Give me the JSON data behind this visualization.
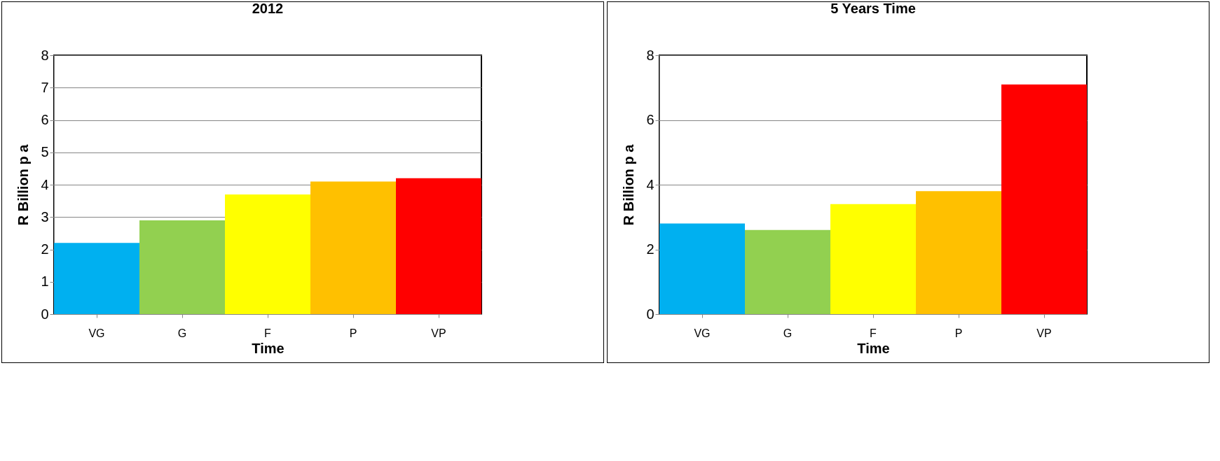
{
  "chart_data": [
    {
      "type": "bar",
      "title": "2012",
      "xlabel": "Time",
      "ylabel": "R Billion p a",
      "categories": [
        "VG",
        "G",
        "F",
        "P",
        "VP"
      ],
      "values": [
        2.2,
        2.9,
        3.7,
        4.1,
        4.2
      ],
      "colors": [
        "#00b0f0",
        "#92d050",
        "#ffff00",
        "#ffc000",
        "#ff0000"
      ],
      "ylim": [
        0,
        8
      ],
      "yticks": [
        0,
        1,
        2,
        3,
        4,
        5,
        6,
        7,
        8
      ],
      "grid": "y"
    },
    {
      "type": "bar",
      "title": "5 Years Time",
      "xlabel": "Time",
      "ylabel": "R Billion p a",
      "categories": [
        "VG",
        "G",
        "F",
        "P",
        "VP"
      ],
      "values": [
        2.8,
        2.6,
        3.4,
        3.8,
        7.1
      ],
      "colors": [
        "#00b0f0",
        "#92d050",
        "#ffff00",
        "#ffc000",
        "#ff0000"
      ],
      "ylim": [
        0,
        8
      ],
      "yticks": [
        0,
        2,
        4,
        6,
        8
      ],
      "grid": "y"
    }
  ]
}
